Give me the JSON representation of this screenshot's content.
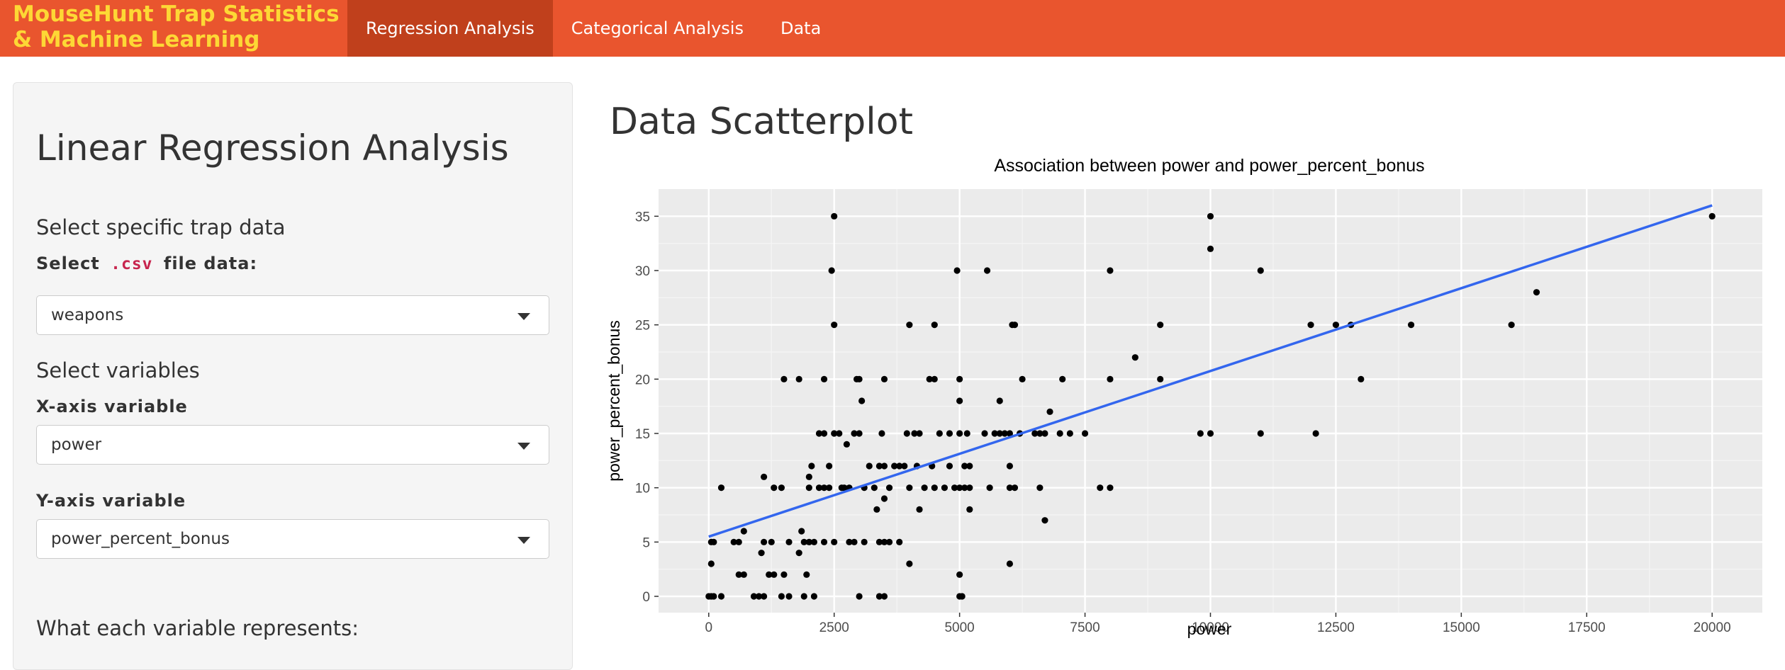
{
  "navbar": {
    "brand_line1": "MouseHunt Trap Statistics",
    "brand_line2": "& Machine Learning",
    "tabs": [
      {
        "label": "Regression Analysis",
        "active": true
      },
      {
        "label": "Categorical Analysis",
        "active": false
      },
      {
        "label": "Data",
        "active": false
      }
    ]
  },
  "sidebar": {
    "title": "Linear Regression Analysis",
    "section_trap": "Select specific trap data",
    "csv_label_pre": "Select",
    "csv_label_code": ".csv",
    "csv_label_post": "file data:",
    "csv_value": "weapons",
    "section_vars": "Select variables",
    "x_label": "X-axis variable",
    "x_value": "power",
    "y_label": "Y-axis variable",
    "y_value": "power_percent_bonus",
    "section_represents": "What each variable represents:"
  },
  "main": {
    "title": "Data Scatterplot"
  },
  "colors": {
    "navbar": "#e9552e",
    "navbar_active": "#c0401c",
    "brand": "#fdd835",
    "panel_bg": "#ebebeb",
    "trend_line": "#3366ee"
  },
  "chart_data": {
    "type": "scatter",
    "title": "Association between power and power_percent_bonus",
    "xlabel": "power",
    "ylabel": "power_percent_bonus",
    "xlim": [
      -1000,
      21000
    ],
    "ylim": [
      -1.5,
      37.5
    ],
    "xticks": [
      0,
      2500,
      5000,
      7500,
      10000,
      12500,
      15000,
      17500,
      20000
    ],
    "yticks": [
      0,
      5,
      10,
      15,
      20,
      25,
      30,
      35
    ],
    "grid": true,
    "points": [
      [
        0,
        0
      ],
      [
        50,
        0
      ],
      [
        100,
        0
      ],
      [
        50,
        3
      ],
      [
        50,
        5
      ],
      [
        100,
        5
      ],
      [
        250,
        0
      ],
      [
        250,
        10
      ],
      [
        500,
        5
      ],
      [
        600,
        2
      ],
      [
        600,
        5
      ],
      [
        700,
        2
      ],
      [
        700,
        6
      ],
      [
        900,
        0
      ],
      [
        1000,
        0
      ],
      [
        1050,
        4
      ],
      [
        1100,
        0
      ],
      [
        1100,
        5
      ],
      [
        1100,
        11
      ],
      [
        1200,
        2
      ],
      [
        1250,
        5
      ],
      [
        1300,
        10
      ],
      [
        1300,
        2
      ],
      [
        1450,
        0
      ],
      [
        1450,
        10
      ],
      [
        1500,
        20
      ],
      [
        1500,
        2
      ],
      [
        1600,
        5
      ],
      [
        1600,
        0
      ],
      [
        1800,
        20
      ],
      [
        1800,
        4
      ],
      [
        1850,
        6
      ],
      [
        1900,
        0
      ],
      [
        1900,
        5
      ],
      [
        1950,
        2
      ],
      [
        2000,
        5
      ],
      [
        2000,
        10
      ],
      [
        2000,
        11
      ],
      [
        2050,
        12
      ],
      [
        2100,
        0
      ],
      [
        2100,
        5
      ],
      [
        2200,
        10
      ],
      [
        2200,
        15
      ],
      [
        2300,
        5
      ],
      [
        2300,
        10
      ],
      [
        2300,
        15
      ],
      [
        2300,
        20
      ],
      [
        2400,
        10
      ],
      [
        2400,
        12
      ],
      [
        2450,
        30
      ],
      [
        2500,
        5
      ],
      [
        2500,
        15
      ],
      [
        2500,
        25
      ],
      [
        2500,
        35
      ],
      [
        2600,
        15
      ],
      [
        2650,
        10
      ],
      [
        2700,
        10
      ],
      [
        2750,
        14
      ],
      [
        2800,
        5
      ],
      [
        2800,
        10
      ],
      [
        2900,
        5
      ],
      [
        2900,
        15
      ],
      [
        2950,
        20
      ],
      [
        3000,
        0
      ],
      [
        3000,
        15
      ],
      [
        3000,
        20
      ],
      [
        3050,
        18
      ],
      [
        3100,
        5
      ],
      [
        3100,
        10
      ],
      [
        3200,
        12
      ],
      [
        3300,
        10
      ],
      [
        3350,
        8
      ],
      [
        3400,
        0
      ],
      [
        3400,
        5
      ],
      [
        3400,
        12
      ],
      [
        3450,
        15
      ],
      [
        3500,
        0
      ],
      [
        3500,
        5
      ],
      [
        3500,
        9
      ],
      [
        3500,
        12
      ],
      [
        3500,
        20
      ],
      [
        3600,
        5
      ],
      [
        3600,
        10
      ],
      [
        3700,
        12
      ],
      [
        3800,
        5
      ],
      [
        3800,
        12
      ],
      [
        3900,
        12
      ],
      [
        3950,
        15
      ],
      [
        4000,
        3
      ],
      [
        4000,
        10
      ],
      [
        4000,
        25
      ],
      [
        4100,
        15
      ],
      [
        4150,
        12
      ],
      [
        4200,
        8
      ],
      [
        4200,
        15
      ],
      [
        4300,
        10
      ],
      [
        4400,
        20
      ],
      [
        4450,
        12
      ],
      [
        4500,
        20
      ],
      [
        4500,
        25
      ],
      [
        4500,
        10
      ],
      [
        4600,
        15
      ],
      [
        4700,
        10
      ],
      [
        4800,
        12
      ],
      [
        4800,
        15
      ],
      [
        4900,
        10
      ],
      [
        4950,
        30
      ],
      [
        5000,
        0
      ],
      [
        5000,
        2
      ],
      [
        5000,
        10
      ],
      [
        5000,
        15
      ],
      [
        5000,
        18
      ],
      [
        5000,
        20
      ],
      [
        5050,
        0
      ],
      [
        5100,
        10
      ],
      [
        5100,
        12
      ],
      [
        5150,
        15
      ],
      [
        5200,
        8
      ],
      [
        5200,
        10
      ],
      [
        5200,
        12
      ],
      [
        5500,
        15
      ],
      [
        5550,
        30
      ],
      [
        5600,
        10
      ],
      [
        5700,
        15
      ],
      [
        5800,
        18
      ],
      [
        5800,
        15
      ],
      [
        5900,
        15
      ],
      [
        6000,
        3
      ],
      [
        6000,
        10
      ],
      [
        6000,
        12
      ],
      [
        6000,
        15
      ],
      [
        6050,
        25
      ],
      [
        6100,
        25
      ],
      [
        6100,
        10
      ],
      [
        6200,
        15
      ],
      [
        6250,
        20
      ],
      [
        6500,
        15
      ],
      [
        6600,
        10
      ],
      [
        6600,
        15
      ],
      [
        6700,
        7
      ],
      [
        6700,
        15
      ],
      [
        6800,
        17
      ],
      [
        7000,
        15
      ],
      [
        7050,
        20
      ],
      [
        7200,
        15
      ],
      [
        7500,
        15
      ],
      [
        7800,
        10
      ],
      [
        8000,
        10
      ],
      [
        8000,
        20
      ],
      [
        8000,
        30
      ],
      [
        8500,
        22
      ],
      [
        9000,
        20
      ],
      [
        9000,
        25
      ],
      [
        9800,
        15
      ],
      [
        10000,
        15
      ],
      [
        10000,
        32
      ],
      [
        10000,
        35
      ],
      [
        11000,
        30
      ],
      [
        11000,
        15
      ],
      [
        12000,
        25
      ],
      [
        12100,
        15
      ],
      [
        12500,
        25
      ],
      [
        12800,
        25
      ],
      [
        13000,
        20
      ],
      [
        14000,
        25
      ],
      [
        16000,
        25
      ],
      [
        16500,
        28
      ],
      [
        20000,
        35
      ]
    ],
    "trend_line": {
      "x": [
        0,
        20000
      ],
      "y": [
        5.5,
        36
      ]
    }
  }
}
